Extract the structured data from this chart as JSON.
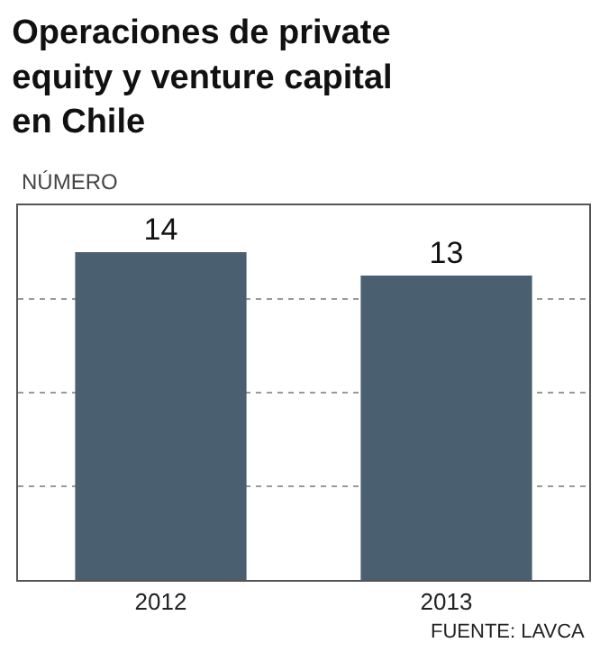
{
  "chart_data": {
    "type": "bar",
    "title": "Operaciones de private equity y venture capital en Chile",
    "ylabel": "NÚMERO",
    "categories": [
      "2012",
      "2013"
    ],
    "values": [
      14,
      13
    ],
    "color": "#4a5f70",
    "data_labels": true,
    "ylim": [
      0,
      16
    ],
    "yticks": [
      {
        "value": 4,
        "label": null
      },
      {
        "value": 8,
        "label": null
      },
      {
        "value": 12,
        "label": null
      }
    ],
    "tick_labels": "x",
    "grid": "y",
    "annotations": [
      "FUENTE: LAVCA"
    ]
  }
}
